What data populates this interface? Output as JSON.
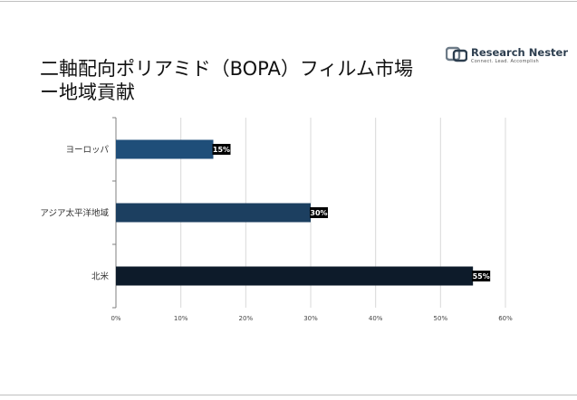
{
  "title": "二軸配向ポリアミド（BOPA）フィルム市場ー地域貢献",
  "logo": {
    "brand_part1": "Research",
    "brand_part2": "Nester",
    "tagline": "Connect. Lead. Accomplish",
    "icon": "research-nester-logo-icon"
  },
  "chart_data": {
    "type": "bar",
    "orientation": "horizontal",
    "categories": [
      "ヨーロッパ",
      "アジア太平洋地域",
      "北米"
    ],
    "values": [
      15,
      30,
      55
    ],
    "data_labels": [
      "15%",
      "30%",
      "55%"
    ],
    "colors": [
      "#1f4e79",
      "#1c3f60",
      "#0d1b2a"
    ],
    "xlim": [
      0,
      60
    ],
    "xticks": [
      "0%",
      "10%",
      "20%",
      "30%",
      "40%",
      "50%",
      "60%"
    ],
    "grid": true,
    "legend": "none"
  }
}
